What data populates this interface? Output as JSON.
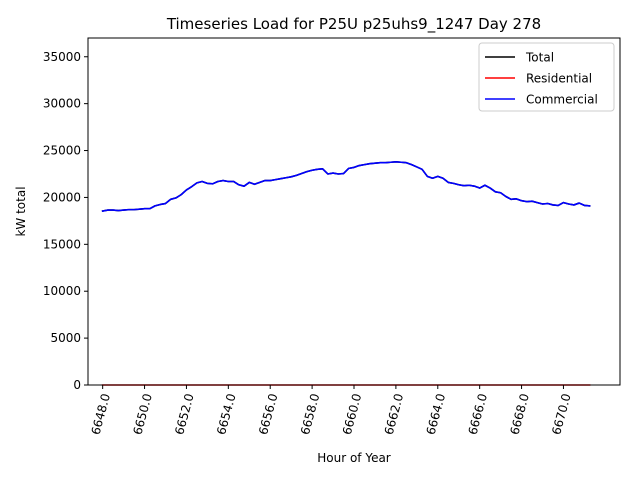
{
  "chart_data": {
    "type": "line",
    "title": "Timeseries Load for P25U p25uhs9_1247  Day 278",
    "xlabel": "Hour of Year",
    "ylabel": "kW total",
    "xlim": [
      6647.3,
      6672.7
    ],
    "ylim": [
      0,
      37000
    ],
    "xticks": [
      6648,
      6650,
      6652,
      6654,
      6656,
      6658,
      6660,
      6662,
      6664,
      6666,
      6668,
      6670
    ],
    "xtick_labels": [
      "6648.0",
      "6650.0",
      "6652.0",
      "6654.0",
      "6656.0",
      "6658.0",
      "6660.0",
      "6662.0",
      "6664.0",
      "6666.0",
      "6668.0",
      "6670.0"
    ],
    "yticks": [
      0,
      5000,
      10000,
      15000,
      20000,
      25000,
      30000,
      35000
    ],
    "ytick_labels": [
      "0",
      "5000",
      "10000",
      "15000",
      "20000",
      "25000",
      "30000",
      "35000"
    ],
    "legend_position": "top-right",
    "x_start": 6648.0,
    "x_step": 0.25,
    "series": [
      {
        "name": "Total",
        "color": "#000000",
        "values": [
          18550,
          18650,
          18650,
          18600,
          18650,
          18700,
          18700,
          18750,
          18800,
          18800,
          19100,
          19250,
          19350,
          19800,
          19950,
          20300,
          20800,
          21150,
          21550,
          21700,
          21500,
          21450,
          21700,
          21800,
          21700,
          21700,
          21350,
          21200,
          21600,
          21400,
          21600,
          21800,
          21800,
          21900,
          22000,
          22100,
          22200,
          22350,
          22550,
          22750,
          22900,
          23000,
          23050,
          22500,
          22600,
          22500,
          22550,
          23100,
          23200,
          23400,
          23500,
          23600,
          23650,
          23700,
          23700,
          23750,
          23800,
          23750,
          23700,
          23500,
          23250,
          23000,
          22250,
          22050,
          22250,
          22050,
          21600,
          21500,
          21350,
          21250,
          21300,
          21200,
          21000,
          21300,
          21000,
          20600,
          20500,
          20100,
          19800,
          19850,
          19650,
          19550,
          19600,
          19450,
          19300,
          19350,
          19200,
          19150,
          19450,
          19300,
          19200,
          19400,
          19150,
          19100
        ]
      },
      {
        "name": "Residential",
        "color": "#ff0000",
        "values": [
          0,
          0,
          0,
          0,
          0,
          0,
          0,
          0,
          0,
          0,
          0,
          0,
          0,
          0,
          0,
          0,
          0,
          0,
          0,
          0,
          0,
          0,
          0,
          0,
          0,
          0,
          0,
          0,
          0,
          0,
          0,
          0,
          0,
          0,
          0,
          0,
          0,
          0,
          0,
          0,
          0,
          0,
          0,
          0,
          0,
          0,
          0,
          0,
          0,
          0,
          0,
          0,
          0,
          0,
          0,
          0,
          0,
          0,
          0,
          0,
          0,
          0,
          0,
          0,
          0,
          0,
          0,
          0,
          0,
          0,
          0,
          0,
          0,
          0,
          0,
          0,
          0,
          0,
          0,
          0,
          0,
          0,
          0,
          0,
          0,
          0,
          0,
          0,
          0,
          0,
          0,
          0,
          0,
          0
        ]
      },
      {
        "name": "Commercial",
        "color": "#0000ff",
        "values": [
          18550,
          18650,
          18650,
          18600,
          18650,
          18700,
          18700,
          18750,
          18800,
          18800,
          19100,
          19250,
          19350,
          19800,
          19950,
          20300,
          20800,
          21150,
          21550,
          21700,
          21500,
          21450,
          21700,
          21800,
          21700,
          21700,
          21350,
          21200,
          21600,
          21400,
          21600,
          21800,
          21800,
          21900,
          22000,
          22100,
          22200,
          22350,
          22550,
          22750,
          22900,
          23000,
          23050,
          22500,
          22600,
          22500,
          22550,
          23100,
          23200,
          23400,
          23500,
          23600,
          23650,
          23700,
          23700,
          23750,
          23800,
          23750,
          23700,
          23500,
          23250,
          23000,
          22250,
          22050,
          22250,
          22050,
          21600,
          21500,
          21350,
          21250,
          21300,
          21200,
          21000,
          21300,
          21000,
          20600,
          20500,
          20100,
          19800,
          19850,
          19650,
          19550,
          19600,
          19450,
          19300,
          19350,
          19200,
          19150,
          19450,
          19300,
          19200,
          19400,
          19150,
          19100
        ]
      }
    ]
  }
}
